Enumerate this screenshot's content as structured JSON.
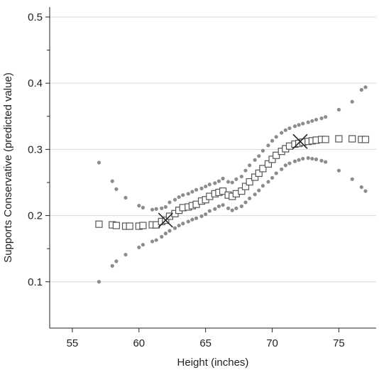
{
  "chart_data": {
    "type": "scatter",
    "title": "",
    "xlabel": "Height (inches)",
    "ylabel": "Supports Conservative (predicted value)",
    "xlim": [
      53.3,
      77.8
    ],
    "ylim": [
      0.03,
      0.515
    ],
    "x_ticks": [
      55,
      60,
      65,
      70,
      75
    ],
    "y_ticks": [
      0.1,
      0.2,
      0.3,
      0.4,
      0.5
    ],
    "x_tick_labels": [
      "55",
      "60",
      "65",
      "70",
      "75"
    ],
    "y_tick_labels": [
      "0.1",
      "0.2",
      "0.3",
      "0.4",
      "0.5"
    ],
    "y_minor_ticks": [
      0.15,
      0.25,
      0.35,
      0.45
    ],
    "grid": "horizontal",
    "colors": {
      "ci": "#8c8c8c",
      "predicted": "#555555",
      "marker": "#222222",
      "grid": "#d9d9d9"
    },
    "series": [
      {
        "marker": "square",
        "points": [
          [
            57,
            0.187
          ],
          [
            58,
            0.186
          ],
          [
            58.3,
            0.185
          ],
          [
            59,
            0.184
          ],
          [
            59.3,
            0.184
          ],
          [
            60,
            0.184
          ],
          [
            60.3,
            0.185
          ],
          [
            61,
            0.186
          ],
          [
            61.3,
            0.186
          ],
          [
            61.7,
            0.191
          ],
          [
            62,
            0.193
          ],
          [
            62.3,
            0.199
          ],
          [
            62.7,
            0.203
          ],
          [
            63,
            0.208
          ],
          [
            63.3,
            0.212
          ],
          [
            63.7,
            0.213
          ],
          [
            64,
            0.215
          ],
          [
            64.3,
            0.217
          ],
          [
            64.7,
            0.222
          ],
          [
            65,
            0.224
          ],
          [
            65.3,
            0.229
          ],
          [
            65.7,
            0.233
          ],
          [
            66,
            0.235
          ],
          [
            66.3,
            0.237
          ],
          [
            66.7,
            0.231
          ],
          [
            67,
            0.229
          ],
          [
            67.3,
            0.233
          ],
          [
            67.7,
            0.237
          ],
          [
            68,
            0.244
          ],
          [
            68.3,
            0.251
          ],
          [
            68.7,
            0.258
          ],
          [
            69,
            0.264
          ],
          [
            69.3,
            0.271
          ],
          [
            69.7,
            0.278
          ],
          [
            70,
            0.285
          ],
          [
            70.3,
            0.291
          ],
          [
            70.7,
            0.297
          ],
          [
            71,
            0.301
          ],
          [
            71.3,
            0.305
          ],
          [
            71.7,
            0.308
          ],
          [
            72,
            0.309
          ],
          [
            72.3,
            0.311
          ],
          [
            72.7,
            0.312
          ],
          [
            73,
            0.313
          ],
          [
            73.3,
            0.314
          ],
          [
            73.7,
            0.315
          ],
          [
            74,
            0.315
          ],
          [
            75,
            0.316
          ],
          [
            76,
            0.316
          ],
          [
            76.7,
            0.315
          ],
          [
            77,
            0.315
          ]
        ]
      },
      {
        "marker": "dot",
        "points": [
          [
            57,
            0.28
          ],
          [
            58,
            0.252
          ],
          [
            58.3,
            0.24
          ],
          [
            59,
            0.227
          ],
          [
            60,
            0.215
          ],
          [
            60.3,
            0.212
          ],
          [
            61,
            0.209
          ],
          [
            61.3,
            0.21
          ],
          [
            61.7,
            0.211
          ],
          [
            62,
            0.213
          ],
          [
            62.3,
            0.22
          ],
          [
            62.7,
            0.224
          ],
          [
            63,
            0.228
          ],
          [
            63.3,
            0.231
          ],
          [
            63.7,
            0.233
          ],
          [
            64,
            0.236
          ],
          [
            64.3,
            0.239
          ],
          [
            64.7,
            0.241
          ],
          [
            65,
            0.244
          ],
          [
            65.3,
            0.247
          ],
          [
            65.7,
            0.249
          ],
          [
            66,
            0.252
          ],
          [
            66.3,
            0.256
          ],
          [
            66.7,
            0.251
          ],
          [
            67,
            0.25
          ],
          [
            67.3,
            0.255
          ],
          [
            67.7,
            0.259
          ],
          [
            68,
            0.268
          ],
          [
            68.3,
            0.276
          ],
          [
            68.7,
            0.284
          ],
          [
            69,
            0.29
          ],
          [
            69.3,
            0.298
          ],
          [
            69.7,
            0.306
          ],
          [
            70,
            0.313
          ],
          [
            70.3,
            0.319
          ],
          [
            70.7,
            0.325
          ],
          [
            71,
            0.329
          ],
          [
            71.3,
            0.332
          ],
          [
            71.7,
            0.335
          ],
          [
            72,
            0.337
          ],
          [
            72.3,
            0.339
          ],
          [
            72.7,
            0.341
          ],
          [
            73,
            0.343
          ],
          [
            73.3,
            0.345
          ],
          [
            73.7,
            0.347
          ],
          [
            74,
            0.349
          ],
          [
            75,
            0.36
          ],
          [
            76,
            0.372
          ],
          [
            76.7,
            0.39
          ],
          [
            77,
            0.394
          ]
        ]
      },
      {
        "marker": "dot",
        "points": [
          [
            57,
            0.1
          ],
          [
            58,
            0.124
          ],
          [
            58.3,
            0.131
          ],
          [
            59,
            0.141
          ],
          [
            60,
            0.152
          ],
          [
            60.3,
            0.156
          ],
          [
            61,
            0.161
          ],
          [
            61.3,
            0.163
          ],
          [
            61.7,
            0.168
          ],
          [
            62,
            0.173
          ],
          [
            62.3,
            0.177
          ],
          [
            62.7,
            0.181
          ],
          [
            63,
            0.185
          ],
          [
            63.3,
            0.188
          ],
          [
            63.7,
            0.191
          ],
          [
            64,
            0.194
          ],
          [
            64.3,
            0.196
          ],
          [
            64.7,
            0.199
          ],
          [
            65,
            0.202
          ],
          [
            65.3,
            0.207
          ],
          [
            65.7,
            0.21
          ],
          [
            66,
            0.214
          ],
          [
            66.3,
            0.216
          ],
          [
            66.7,
            0.211
          ],
          [
            67,
            0.208
          ],
          [
            67.3,
            0.211
          ],
          [
            67.7,
            0.214
          ],
          [
            68,
            0.22
          ],
          [
            68.3,
            0.226
          ],
          [
            68.7,
            0.232
          ],
          [
            69,
            0.238
          ],
          [
            69.3,
            0.245
          ],
          [
            69.7,
            0.251
          ],
          [
            70,
            0.257
          ],
          [
            70.3,
            0.264
          ],
          [
            70.7,
            0.27
          ],
          [
            71,
            0.276
          ],
          [
            71.3,
            0.279
          ],
          [
            71.7,
            0.282
          ],
          [
            72,
            0.284
          ],
          [
            72.3,
            0.286
          ],
          [
            72.7,
            0.287
          ],
          [
            73,
            0.286
          ],
          [
            73.3,
            0.285
          ],
          [
            73.7,
            0.283
          ],
          [
            74,
            0.281
          ],
          [
            75,
            0.268
          ],
          [
            76,
            0.255
          ],
          [
            76.7,
            0.243
          ],
          [
            77,
            0.237
          ]
        ]
      },
      {
        "marker": "x",
        "points": [
          [
            62,
            0.193
          ],
          [
            72.1,
            0.312
          ]
        ]
      }
    ]
  }
}
